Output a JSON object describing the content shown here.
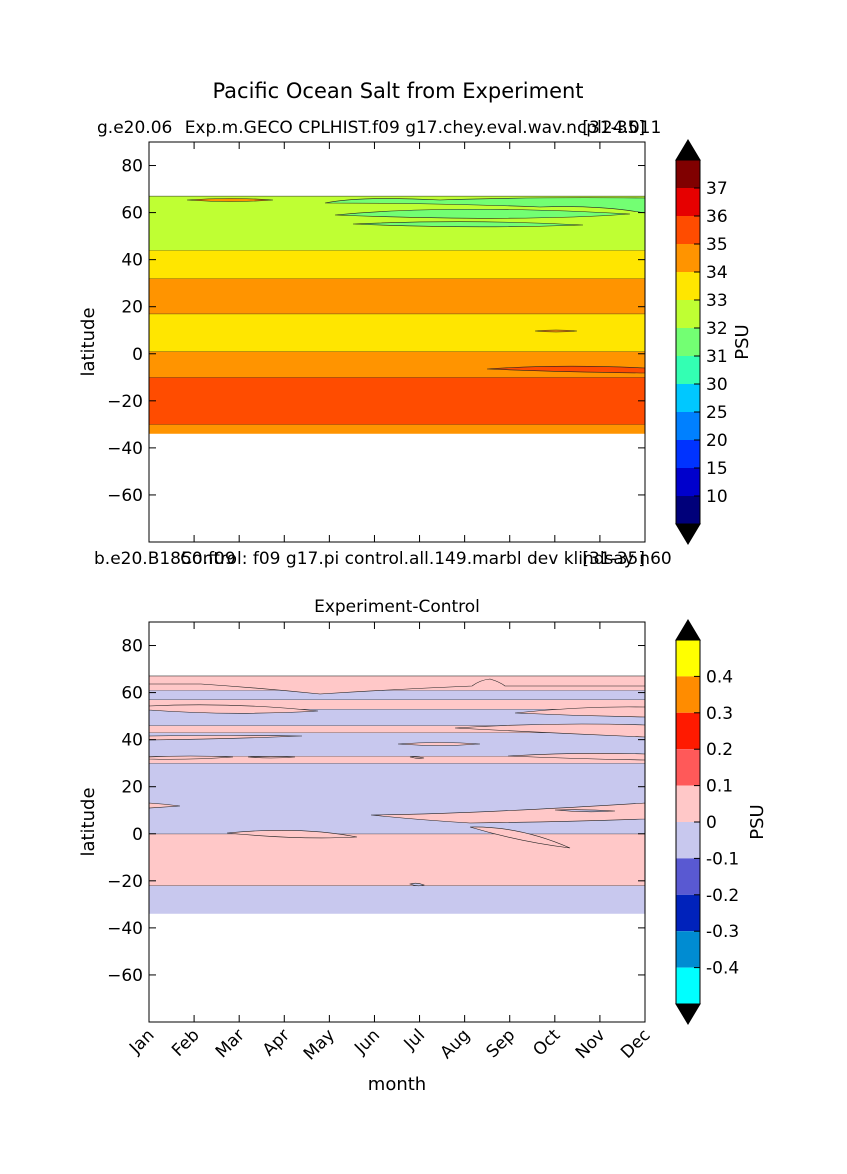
{
  "figure": {
    "suptitle": "Pacific Ocean Salt from Experiment"
  },
  "chart_data": [
    {
      "type": "heatmap",
      "subtype": "filled-contour",
      "title_left": "g.e20.06",
      "title_center": "Exp.m.GECO CPLHIST.f09 g17.chey.eval.wav.ncpl24.011",
      "title_right": "[31-35]",
      "xlabel": "",
      "ylabel": "latitude",
      "x_categories": [
        "Jan",
        "Feb",
        "Mar",
        "Apr",
        "May",
        "Jun",
        "Jul",
        "Aug",
        "Sep",
        "Oct",
        "Nov",
        "Dec"
      ],
      "ylim": [
        -80,
        90
      ],
      "yticks": [
        80,
        60,
        40,
        20,
        0,
        -20,
        -40,
        -60
      ],
      "data_lat_range": [
        -34,
        67
      ],
      "colorbar": {
        "label": "PSU",
        "extend": "both",
        "tick_labels": [
          "37",
          "36",
          "35",
          "34",
          "33",
          "32",
          "31",
          "30",
          "25",
          "20",
          "15",
          "10"
        ],
        "levels": [
          37,
          36,
          35,
          34,
          33,
          32,
          31,
          30,
          25,
          20,
          15,
          10,
          5
        ],
        "colors": [
          "#800000",
          "#e60000",
          "#ff4c00",
          "#ff9400",
          "#ffe600",
          "#bfff33",
          "#73ff73",
          "#33ffb3",
          "#00c8ff",
          "#0080ff",
          "#0033ff",
          "#0000cc",
          "#00007a"
        ],
        "over_color": "#000000",
        "under_color": "#000000"
      },
      "bands": [
        {
          "lat_from": -34,
          "lat_to": -30,
          "value": "34-35",
          "color": "#ff9400"
        },
        {
          "lat_from": -30,
          "lat_to": -10,
          "value": "35-36",
          "color": "#ff4c00"
        },
        {
          "lat_from": -10,
          "lat_to": 1,
          "value": "34-35",
          "color": "#ff9400"
        },
        {
          "lat_from": 1,
          "lat_to": 17,
          "value": "33-34",
          "color": "#ffe600"
        },
        {
          "lat_from": 17,
          "lat_to": 32,
          "value": "34-35",
          "color": "#ff9400"
        },
        {
          "lat_from": 32,
          "lat_to": 44,
          "value": "33-34",
          "color": "#ffe600"
        },
        {
          "lat_from": 44,
          "lat_to": 67,
          "value": "32-33",
          "color": "#bfff33"
        }
      ]
    },
    {
      "type": "heatmap",
      "subtype": "filled-contour",
      "title_left": "b.e20.B1850.f09",
      "title_center": "Control: f09 g17.pi control.all.149.marbl dev klindsay n60",
      "title_right": "[31-35]",
      "title_main": "Experiment-Control",
      "xlabel": "month",
      "ylabel": "latitude",
      "x_categories": [
        "Jan",
        "Feb",
        "Mar",
        "Apr",
        "May",
        "Jun",
        "Jul",
        "Aug",
        "Sep",
        "Oct",
        "Nov",
        "Dec"
      ],
      "ylim": [
        -80,
        90
      ],
      "yticks": [
        80,
        60,
        40,
        20,
        0,
        -20,
        -40,
        -60
      ],
      "data_lat_range": [
        -34,
        67
      ],
      "colorbar": {
        "label": "PSU",
        "extend": "both",
        "tick_labels": [
          "0.4",
          "0.3",
          "0.2",
          "0.1",
          "0",
          "-0.1",
          "-0.2",
          "-0.3",
          "-0.4"
        ],
        "levels": [
          0.5,
          0.4,
          0.3,
          0.2,
          0.1,
          0,
          -0.1,
          -0.2,
          -0.3,
          -0.4,
          -0.5
        ],
        "colors": [
          "#ffff00",
          "#ff8c00",
          "#ff1a00",
          "#ff5959",
          "#ffc8c8",
          "#c8c8ee",
          "#5959d2",
          "#0022bb",
          "#008cd2",
          "#00ffff"
        ],
        "over_color": "#000000",
        "under_color": "#000000"
      },
      "bands": [
        {
          "lat_from": -34,
          "lat_to": -22,
          "value": "-0.1-0",
          "color": "#c8c8ee"
        },
        {
          "lat_from": -22,
          "lat_to": 0,
          "value": "0-0.1",
          "color": "#ffc8c8"
        },
        {
          "lat_from": 0,
          "lat_to": 30,
          "value": "-0.1-0",
          "color": "#c8c8ee"
        },
        {
          "lat_from": 30,
          "lat_to": 33,
          "value": "0-0.1",
          "color": "#ffc8c8"
        },
        {
          "lat_from": 33,
          "lat_to": 43,
          "value": "-0.1-0",
          "color": "#c8c8ee"
        },
        {
          "lat_from": 43,
          "lat_to": 46,
          "value": "0-0.1",
          "color": "#ffc8c8"
        },
        {
          "lat_from": 46,
          "lat_to": 53,
          "value": "-0.1-0",
          "color": "#c8c8ee"
        },
        {
          "lat_from": 53,
          "lat_to": 57,
          "value": "0-0.1",
          "color": "#ffc8c8"
        },
        {
          "lat_from": 57,
          "lat_to": 61,
          "value": "-0.1-0",
          "color": "#c8c8ee"
        },
        {
          "lat_from": 61,
          "lat_to": 67,
          "value": "0-0.1",
          "color": "#ffc8c8"
        }
      ]
    }
  ]
}
